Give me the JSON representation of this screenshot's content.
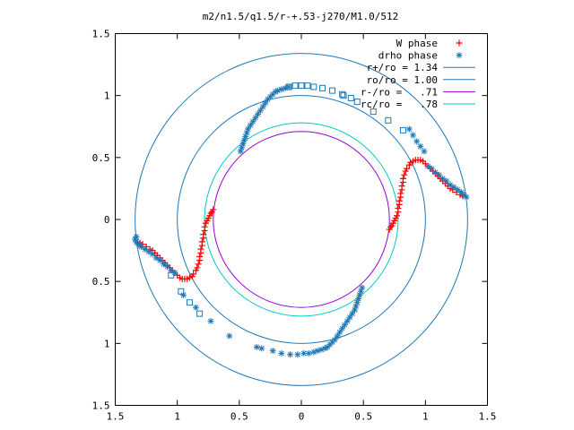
{
  "chart_data": {
    "type": "scatter",
    "title": "m2/n1.5/q1.5/r-+.53-j270/M1.0/512",
    "xlim": [
      -1.5,
      1.5
    ],
    "ylim": [
      -1.5,
      1.5
    ],
    "x_ticks": [
      -1.5,
      -1,
      -0.5,
      0,
      0.5,
      1,
      1.5
    ],
    "y_ticks": [
      -1.5,
      -1,
      -0.5,
      0,
      0.5,
      1,
      1.5
    ],
    "x_tick_labels": [
      "1.5",
      "1",
      "0.5",
      "0",
      "0.5",
      "1",
      "1.5"
    ],
    "y_tick_labels": [
      "1.5",
      "1",
      "0.5",
      "0",
      "0.5",
      "1",
      "1.5"
    ],
    "grid": false,
    "legend_position": "top-right",
    "circles": [
      {
        "label": "r+/ro = 1.34",
        "radius": 1.34,
        "color": "#1f77b4"
      },
      {
        "label": "ro/ro = 1.00",
        "radius": 1.0,
        "color": "#1f77b4"
      },
      {
        "label": "r-/ro =   .71",
        "radius": 0.71,
        "color": "#9400d3"
      },
      {
        "label": "rc/ro =   .78",
        "radius": 0.78,
        "color": "#00c8c8"
      }
    ],
    "series": [
      {
        "name": "W phase",
        "marker": "+",
        "color": "#ff0000",
        "points": [
          [
            0.71,
            -0.08
          ],
          [
            0.72,
            -0.06
          ],
          [
            0.73,
            -0.05
          ],
          [
            0.74,
            -0.03
          ],
          [
            0.75,
            -0.01
          ],
          [
            0.76,
            0.01
          ],
          [
            0.77,
            0.03
          ],
          [
            0.78,
            0.06
          ],
          [
            0.78,
            0.09
          ],
          [
            0.79,
            0.12
          ],
          [
            0.79,
            0.15
          ],
          [
            0.8,
            0.18
          ],
          [
            0.8,
            0.21
          ],
          [
            0.81,
            0.24
          ],
          [
            0.81,
            0.27
          ],
          [
            0.82,
            0.3
          ],
          [
            0.82,
            0.33
          ],
          [
            0.83,
            0.36
          ],
          [
            0.84,
            0.39
          ],
          [
            0.85,
            0.41
          ],
          [
            0.87,
            0.44
          ],
          [
            0.88,
            0.46
          ],
          [
            0.9,
            0.47
          ],
          [
            0.92,
            0.48
          ],
          [
            0.94,
            0.48
          ],
          [
            0.96,
            0.48
          ],
          [
            0.98,
            0.47
          ],
          [
            1.0,
            0.45
          ],
          [
            1.02,
            0.43
          ],
          [
            1.04,
            0.41
          ],
          [
            1.06,
            0.39
          ],
          [
            1.08,
            0.37
          ],
          [
            1.1,
            0.35
          ],
          [
            1.12,
            0.33
          ],
          [
            1.14,
            0.31
          ],
          [
            1.16,
            0.29
          ],
          [
            1.18,
            0.27
          ],
          [
            1.2,
            0.25
          ],
          [
            1.22,
            0.24
          ],
          [
            1.25,
            0.22
          ],
          [
            1.28,
            0.2
          ],
          [
            1.3,
            0.19
          ],
          [
            -0.71,
            0.08
          ],
          [
            -0.72,
            0.06
          ],
          [
            -0.73,
            0.05
          ],
          [
            -0.74,
            0.03
          ],
          [
            -0.75,
            0.01
          ],
          [
            -0.76,
            -0.01
          ],
          [
            -0.77,
            -0.03
          ],
          [
            -0.78,
            -0.06
          ],
          [
            -0.78,
            -0.09
          ],
          [
            -0.79,
            -0.12
          ],
          [
            -0.79,
            -0.15
          ],
          [
            -0.8,
            -0.18
          ],
          [
            -0.8,
            -0.21
          ],
          [
            -0.81,
            -0.24
          ],
          [
            -0.81,
            -0.27
          ],
          [
            -0.82,
            -0.3
          ],
          [
            -0.82,
            -0.33
          ],
          [
            -0.83,
            -0.36
          ],
          [
            -0.84,
            -0.39
          ],
          [
            -0.85,
            -0.41
          ],
          [
            -0.87,
            -0.44
          ],
          [
            -0.88,
            -0.46
          ],
          [
            -0.9,
            -0.47
          ],
          [
            -0.92,
            -0.48
          ],
          [
            -0.94,
            -0.48
          ],
          [
            -0.96,
            -0.48
          ],
          [
            -0.98,
            -0.47
          ],
          [
            -1.0,
            -0.45
          ],
          [
            -1.02,
            -0.43
          ],
          [
            -1.04,
            -0.41
          ],
          [
            -1.06,
            -0.39
          ],
          [
            -1.08,
            -0.37
          ],
          [
            -1.1,
            -0.35
          ],
          [
            -1.12,
            -0.33
          ],
          [
            -1.14,
            -0.31
          ],
          [
            -1.16,
            -0.29
          ],
          [
            -1.18,
            -0.27
          ],
          [
            -1.2,
            -0.25
          ],
          [
            -1.22,
            -0.24
          ],
          [
            -1.25,
            -0.22
          ],
          [
            -1.28,
            -0.2
          ],
          [
            -1.3,
            -0.19
          ]
        ]
      },
      {
        "name": "drho phase",
        "marker": "*",
        "color": "#1f77b4",
        "points": [
          [
            -0.49,
            0.55
          ],
          [
            -0.48,
            0.58
          ],
          [
            -0.47,
            0.61
          ],
          [
            -0.46,
            0.64
          ],
          [
            -0.45,
            0.67
          ],
          [
            -0.44,
            0.7
          ],
          [
            -0.43,
            0.73
          ],
          [
            -0.41,
            0.76
          ],
          [
            -0.39,
            0.79
          ],
          [
            -0.37,
            0.82
          ],
          [
            -0.35,
            0.85
          ],
          [
            -0.33,
            0.88
          ],
          [
            -0.31,
            0.91
          ],
          [
            -0.29,
            0.94
          ],
          [
            -0.27,
            0.97
          ],
          [
            -0.25,
            0.99
          ],
          [
            -0.23,
            1.01
          ],
          [
            -0.21,
            1.03
          ],
          [
            -0.19,
            1.04
          ],
          [
            -0.16,
            1.05
          ],
          [
            -0.13,
            1.06
          ],
          [
            -0.1,
            1.07
          ],
          [
            0.49,
            -0.55
          ],
          [
            0.48,
            -0.58
          ],
          [
            0.47,
            -0.61
          ],
          [
            0.46,
            -0.64
          ],
          [
            0.45,
            -0.67
          ],
          [
            0.44,
            -0.7
          ],
          [
            0.43,
            -0.73
          ],
          [
            0.41,
            -0.76
          ],
          [
            0.39,
            -0.79
          ],
          [
            0.37,
            -0.82
          ],
          [
            0.35,
            -0.85
          ],
          [
            0.33,
            -0.88
          ],
          [
            0.31,
            -0.91
          ],
          [
            0.29,
            -0.94
          ],
          [
            0.27,
            -0.97
          ],
          [
            0.25,
            -0.99
          ],
          [
            0.23,
            -1.01
          ],
          [
            0.21,
            -1.03
          ],
          [
            0.19,
            -1.04
          ],
          [
            0.16,
            -1.05
          ],
          [
            0.13,
            -1.06
          ],
          [
            0.1,
            -1.07
          ],
          [
            0.06,
            -1.08
          ],
          [
            0.02,
            -1.08
          ],
          [
            -0.03,
            -1.09
          ],
          [
            -0.09,
            -1.09
          ],
          [
            -0.16,
            -1.08
          ],
          [
            -0.23,
            -1.06
          ],
          [
            -0.32,
            -1.04
          ],
          [
            -0.36,
            -1.03
          ],
          [
            1.02,
            0.43
          ],
          [
            1.05,
            0.41
          ],
          [
            1.08,
            0.38
          ],
          [
            1.11,
            0.36
          ],
          [
            1.14,
            0.33
          ],
          [
            1.17,
            0.31
          ],
          [
            1.2,
            0.28
          ],
          [
            1.23,
            0.26
          ],
          [
            1.26,
            0.24
          ],
          [
            1.29,
            0.22
          ],
          [
            1.31,
            0.2
          ],
          [
            1.33,
            0.18
          ],
          [
            0.9,
            0.68
          ],
          [
            0.93,
            0.63
          ],
          [
            0.96,
            0.59
          ],
          [
            0.99,
            0.55
          ],
          [
            0.87,
            0.73
          ],
          [
            -1.02,
            -0.43
          ],
          [
            -1.05,
            -0.41
          ],
          [
            -1.08,
            -0.38
          ],
          [
            -1.11,
            -0.36
          ],
          [
            -1.14,
            -0.33
          ],
          [
            -1.17,
            -0.31
          ],
          [
            -1.2,
            -0.28
          ],
          [
            -1.23,
            -0.26
          ],
          [
            -1.26,
            -0.24
          ],
          [
            -1.29,
            -0.22
          ],
          [
            -1.31,
            -0.2
          ],
          [
            -1.33,
            -0.18
          ],
          [
            -1.34,
            -0.16
          ],
          [
            -1.33,
            -0.14
          ],
          [
            -1.32,
            -0.19
          ],
          [
            -1.3,
            -0.21
          ],
          [
            -0.73,
            -0.82
          ],
          [
            -0.58,
            -0.94
          ],
          [
            -0.85,
            -0.71
          ],
          [
            -0.95,
            -0.61
          ]
        ]
      },
      {
        "name": "",
        "marker": "square",
        "color": "#1f77b4",
        "points": [
          [
            -0.1,
            1.07
          ],
          [
            -0.05,
            1.08
          ],
          [
            0.0,
            1.08
          ],
          [
            0.05,
            1.08
          ],
          [
            0.1,
            1.07
          ],
          [
            0.17,
            1.06
          ],
          [
            0.25,
            1.04
          ],
          [
            0.33,
            1.01
          ],
          [
            0.45,
            0.95
          ],
          [
            0.58,
            0.87
          ],
          [
            0.7,
            0.8
          ],
          [
            0.82,
            0.72
          ],
          [
            -1.05,
            -0.45
          ],
          [
            -0.97,
            -0.58
          ],
          [
            -0.9,
            -0.67
          ],
          [
            -0.82,
            -0.76
          ],
          [
            0.34,
            1.0
          ],
          [
            0.4,
            0.98
          ]
        ]
      }
    ]
  }
}
